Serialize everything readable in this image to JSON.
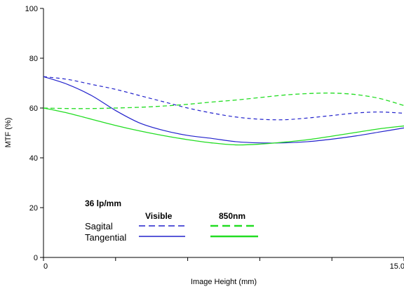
{
  "chart_data": {
    "type": "line",
    "title": "",
    "xlabel": "Image Height (mm)",
    "ylabel": "MTF (%)",
    "xlim": [
      0,
      15
    ],
    "ylim": [
      0,
      100
    ],
    "yticks": [
      0,
      20,
      40,
      60,
      80,
      100
    ],
    "xticks": [
      0,
      3,
      6,
      9,
      12,
      15
    ],
    "xtick_labels": [
      "0",
      "",
      "",
      "",
      "",
      "15.0"
    ],
    "grid": false,
    "legend_placement": "bottom-left",
    "legend": {
      "frequency_label": "36 lp/mm",
      "col_headers": [
        "Visible",
        "850nm"
      ],
      "row_labels": [
        "Sagital",
        "Tangential"
      ]
    },
    "series": [
      {
        "name": "Sagital",
        "group": "Visible",
        "color": "#2222cc",
        "dash": true,
        "x": [
          0,
          1,
          2,
          3,
          4,
          5,
          6,
          7,
          8,
          9,
          10,
          11,
          12,
          13,
          14,
          15
        ],
        "y": [
          72.6,
          71.5,
          69.5,
          67.5,
          65,
          62.5,
          60,
          58,
          56.4,
          55.5,
          55.3,
          56,
          57,
          58,
          58.4,
          57.9
        ]
      },
      {
        "name": "Tangential",
        "group": "Visible",
        "color": "#2222cc",
        "dash": false,
        "x": [
          0,
          1,
          2,
          3,
          4,
          5,
          6,
          7,
          8,
          9,
          10,
          11,
          12,
          13,
          14,
          15
        ],
        "y": [
          72.6,
          69.5,
          65,
          59,
          54,
          51,
          49,
          47.8,
          46.5,
          46,
          46,
          46.5,
          47.5,
          48.8,
          50.4,
          52
        ]
      },
      {
        "name": "Sagital",
        "group": "850nm",
        "color": "#22dd22",
        "dash": true,
        "x": [
          0,
          1,
          2,
          3,
          4,
          5,
          6,
          7,
          8,
          9,
          10,
          11,
          12,
          13,
          14,
          15
        ],
        "y": [
          60,
          59.8,
          59.8,
          60,
          60.3,
          60.8,
          61.5,
          62.4,
          63.2,
          64.2,
          65.2,
          65.8,
          66,
          65.4,
          63.8,
          61
        ]
      },
      {
        "name": "Tangential",
        "group": "850nm",
        "color": "#22dd22",
        "dash": false,
        "x": [
          0,
          1,
          2,
          3,
          4,
          5,
          6,
          7,
          8,
          9,
          10,
          11,
          12,
          13,
          14,
          15
        ],
        "y": [
          60,
          58,
          55.5,
          53,
          50.8,
          48.9,
          47.3,
          46,
          45.2,
          45.5,
          46.3,
          47.3,
          48.7,
          50.2,
          51.7,
          52.8
        ]
      }
    ]
  }
}
